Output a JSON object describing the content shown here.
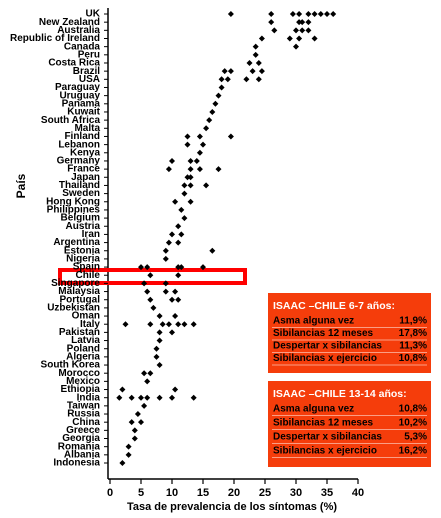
{
  "chart_data": {
    "type": "dot",
    "x_label": "Tasa de prevalencia de los síntomas (%)",
    "y_label": "País",
    "xlim": [
      0,
      40
    ],
    "xticks": [
      0,
      5,
      10,
      15,
      20,
      25,
      30,
      35,
      40
    ],
    "color": "#000000",
    "categories": [
      "UK",
      "New Zealand",
      "Australia",
      "Republic of Ireland",
      "Canada",
      "Peru",
      "Costa Rica",
      "Brazil",
      "USA",
      "Paraguay",
      "Uruguay",
      "Panama",
      "Kuwait",
      "South Africa",
      "Malta",
      "Finland",
      "Lebanon",
      "Kenya",
      "Germany",
      "France",
      "Japan",
      "Thailand",
      "Sweden",
      "Hong Kong",
      "Philippines",
      "Belgium",
      "Austria",
      "Iran",
      "Argentina",
      "Estonia",
      "Nigeria",
      "Spain",
      "Chile",
      "Singapore",
      "Malaysia",
      "Portugal",
      "Uzbekistan",
      "Oman",
      "Italy",
      "Pakistan",
      "Latvia",
      "Poland",
      "Algeria",
      "South Korea",
      "Morocco",
      "Mexico",
      "Ethiopia",
      "India",
      "Taiwan",
      "Russia",
      "China",
      "Greece",
      "Georgia",
      "Romania",
      "Albania",
      "Indonesia"
    ],
    "values": [
      [
        19.5,
        26,
        29.5,
        30.5,
        32,
        33,
        34,
        35,
        36
      ],
      [
        26,
        30.5,
        31,
        32
      ],
      [
        26.5,
        30,
        31,
        32
      ],
      [
        24.5,
        29,
        30.5,
        33
      ],
      [
        23.5,
        30
      ],
      [
        23.5
      ],
      [
        22.5,
        24
      ],
      [
        18.5,
        19.5,
        23,
        24.5
      ],
      [
        18,
        19,
        22,
        24
      ],
      [
        18
      ],
      [
        17.5
      ],
      [
        17
      ],
      [
        16.5
      ],
      [
        16
      ],
      [
        15.5
      ],
      [
        12.5,
        14.5,
        19.5
      ],
      [
        12.5,
        15
      ],
      [
        14.5
      ],
      [
        10,
        13,
        14
      ],
      [
        9.5,
        13,
        14.5,
        17.5
      ],
      [
        12.5,
        13
      ],
      [
        12,
        13,
        15.5
      ],
      [
        12
      ],
      [
        10.5,
        13
      ],
      [
        11.5
      ],
      [
        12
      ],
      [
        11
      ],
      [
        10,
        11.5
      ],
      [
        9.5,
        11
      ],
      [
        9,
        16.5
      ],
      [
        9
      ],
      [
        5,
        6,
        11,
        11.5,
        15
      ],
      [
        6.5,
        11
      ],
      [
        5.5,
        9
      ],
      [
        6,
        9,
        10.5
      ],
      [
        6.5,
        10,
        11
      ],
      [
        7
      ],
      [
        8,
        10.5
      ],
      [
        2.5,
        6.5,
        8.5,
        9.5,
        11,
        12,
        13.5
      ],
      [
        8,
        10
      ],
      [
        8
      ],
      [
        7.5
      ],
      [
        7.5
      ],
      [
        8
      ],
      [
        5.5,
        6.5
      ],
      [
        6
      ],
      [
        2,
        10.5
      ],
      [
        1.5,
        3.5,
        5,
        6,
        8,
        10,
        13.5
      ],
      [
        5.5
      ],
      [
        4.5
      ],
      [
        3.5,
        5
      ],
      [
        4
      ],
      [
        4
      ],
      [
        3
      ],
      [
        3
      ],
      [
        2
      ]
    ],
    "boxes": [
      {
        "title": "ISAAC –CHILE 6-7 años:",
        "rows": [
          {
            "label": "Asma alguna vez",
            "value": "11,9%"
          },
          {
            "label": "Sibilancias 12 meses",
            "value": "17,8%"
          },
          {
            "label": "Despertar x sibilancias",
            "value": "11,3%"
          },
          {
            "label": "Sibilancias x ejercicio",
            "value": "10,8%"
          }
        ]
      },
      {
        "title": "ISAAC –CHILE 13-14 años:",
        "rows": [
          {
            "label": "Asma alguna vez",
            "value": "10,8%"
          },
          {
            "label": "Sibilancias 12 meses",
            "value": "10,2%"
          },
          {
            "label": "Despertar x sibilancias",
            "value": "5,3%"
          },
          {
            "label": "Sibilancias x ejercicio",
            "value": "16,2%"
          }
        ]
      }
    ]
  }
}
